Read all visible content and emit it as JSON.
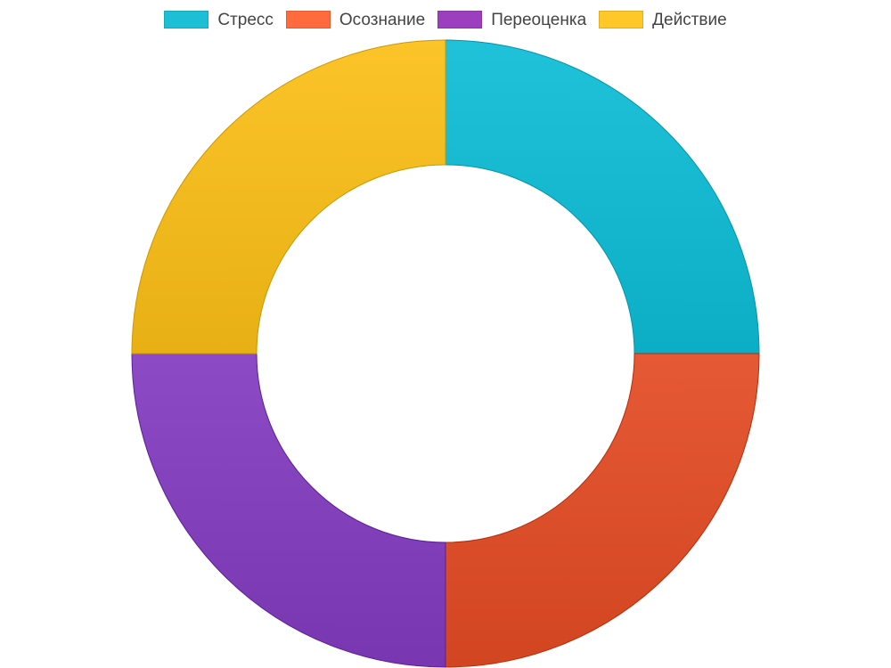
{
  "chart_data": {
    "type": "pie",
    "variant": "donut",
    "title": "",
    "categories": [
      "Стресс",
      "Осознание",
      "Переоценка",
      "Действие"
    ],
    "values": [
      25,
      25,
      25,
      25
    ],
    "colors": [
      "#1ABCD4",
      "#E0532F",
      "#8644BE",
      "#F5BE22"
    ],
    "legend_colors": [
      "#1DBFD6",
      "#FF6B3D",
      "#9C3FBF",
      "#FFC727"
    ],
    "legend_position": "top",
    "start_angle_deg": 0,
    "direction": "clockwise"
  }
}
